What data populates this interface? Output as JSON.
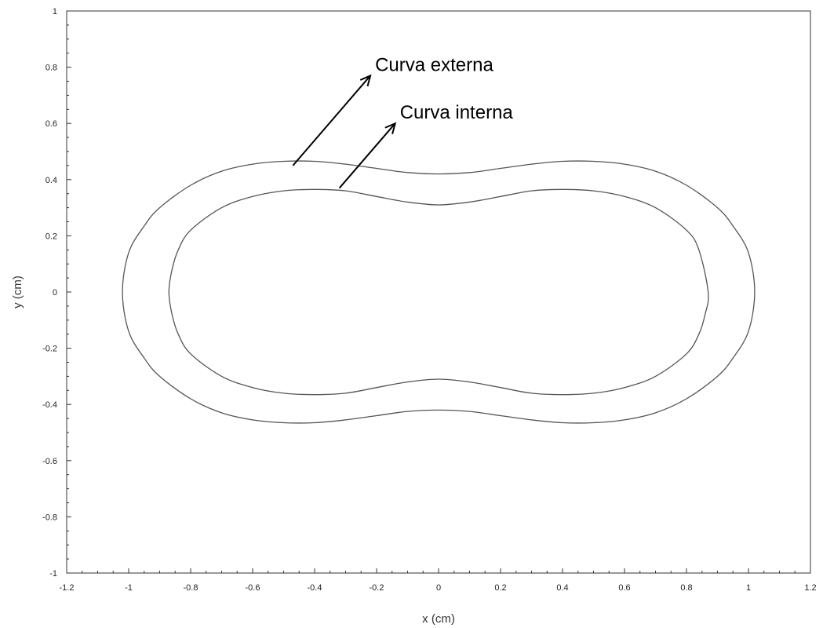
{
  "chart_data": {
    "type": "line",
    "xlabel": "x (cm)",
    "ylabel": "y (cm)",
    "xlim": [
      -1.2,
      1.2
    ],
    "ylim": [
      -1,
      1
    ],
    "xticks": [
      "-1.2",
      "-1",
      "-0.8",
      "-0.6",
      "-0.4",
      "-0.2",
      "0",
      "0.2",
      "0.4",
      "0.6",
      "0.8",
      "1",
      "1.2"
    ],
    "yticks": [
      "1",
      "0.8",
      "0.6",
      "0.4",
      "0.2",
      "0",
      "-0.2",
      "-0.4",
      "-0.6",
      "-0.8",
      "-1"
    ],
    "grid": false,
    "line_color": "#555555",
    "series": [
      {
        "x": [
          0.0,
          0.1,
          0.2,
          0.3,
          0.4,
          0.5,
          0.6,
          0.7,
          0.8,
          0.9,
          0.95,
          1.0,
          1.02,
          1.0,
          0.95,
          0.9,
          0.8,
          0.7,
          0.6,
          0.5,
          0.4,
          0.3,
          0.2,
          0.1,
          0.0,
          -0.1,
          -0.2,
          -0.3,
          -0.4,
          -0.5,
          -0.6,
          -0.7,
          -0.8,
          -0.9,
          -0.95,
          -1.0,
          -1.02,
          -1.0,
          -0.95,
          -0.9,
          -0.8,
          -0.7,
          -0.6,
          -0.5,
          -0.4,
          -0.3,
          -0.2,
          -0.1,
          0.0
        ],
        "y": [
          0.42,
          0.425,
          0.44,
          0.455,
          0.465,
          0.465,
          0.455,
          0.43,
          0.38,
          0.3,
          0.235,
          0.14,
          0.0,
          -0.14,
          -0.235,
          -0.3,
          -0.38,
          -0.43,
          -0.455,
          -0.465,
          -0.465,
          -0.455,
          -0.44,
          -0.425,
          -0.42,
          -0.425,
          -0.44,
          -0.455,
          -0.465,
          -0.465,
          -0.455,
          -0.43,
          -0.38,
          -0.3,
          -0.235,
          -0.14,
          0.0,
          0.14,
          0.235,
          0.3,
          0.38,
          0.43,
          0.455,
          0.465,
          0.465,
          0.455,
          0.44,
          0.425,
          0.42
        ]
      },
      {
        "x": [
          0.0,
          0.1,
          0.2,
          0.3,
          0.4,
          0.5,
          0.6,
          0.7,
          0.8,
          0.84,
          0.87,
          0.86,
          0.84,
          0.8,
          0.7,
          0.6,
          0.5,
          0.4,
          0.3,
          0.2,
          0.1,
          0.0,
          -0.1,
          -0.2,
          -0.3,
          -0.4,
          -0.5,
          -0.6,
          -0.7,
          -0.8,
          -0.84,
          -0.86,
          -0.87,
          -0.86,
          -0.84,
          -0.8,
          -0.7,
          -0.6,
          -0.5,
          -0.4,
          -0.3,
          -0.2,
          -0.1,
          0.0
        ],
        "y": [
          0.31,
          0.32,
          0.34,
          0.36,
          0.365,
          0.36,
          0.34,
          0.3,
          0.22,
          0.15,
          0.0,
          -0.08,
          -0.15,
          -0.22,
          -0.3,
          -0.34,
          -0.36,
          -0.365,
          -0.36,
          -0.34,
          -0.32,
          -0.31,
          -0.32,
          -0.34,
          -0.36,
          -0.365,
          -0.36,
          -0.34,
          -0.3,
          -0.22,
          -0.15,
          -0.08,
          0.0,
          0.08,
          0.15,
          0.22,
          0.3,
          0.34,
          0.36,
          0.365,
          0.36,
          0.34,
          0.32,
          0.31
        ]
      }
    ],
    "annotations": [
      {
        "text": "Curva externa",
        "arrow_from": [
          -0.47,
          0.45
        ],
        "arrow_to": [
          -0.22,
          0.77
        ]
      },
      {
        "text": "Curva interna",
        "arrow_from": [
          -0.32,
          0.37
        ],
        "arrow_to": [
          -0.14,
          0.6
        ]
      }
    ]
  }
}
